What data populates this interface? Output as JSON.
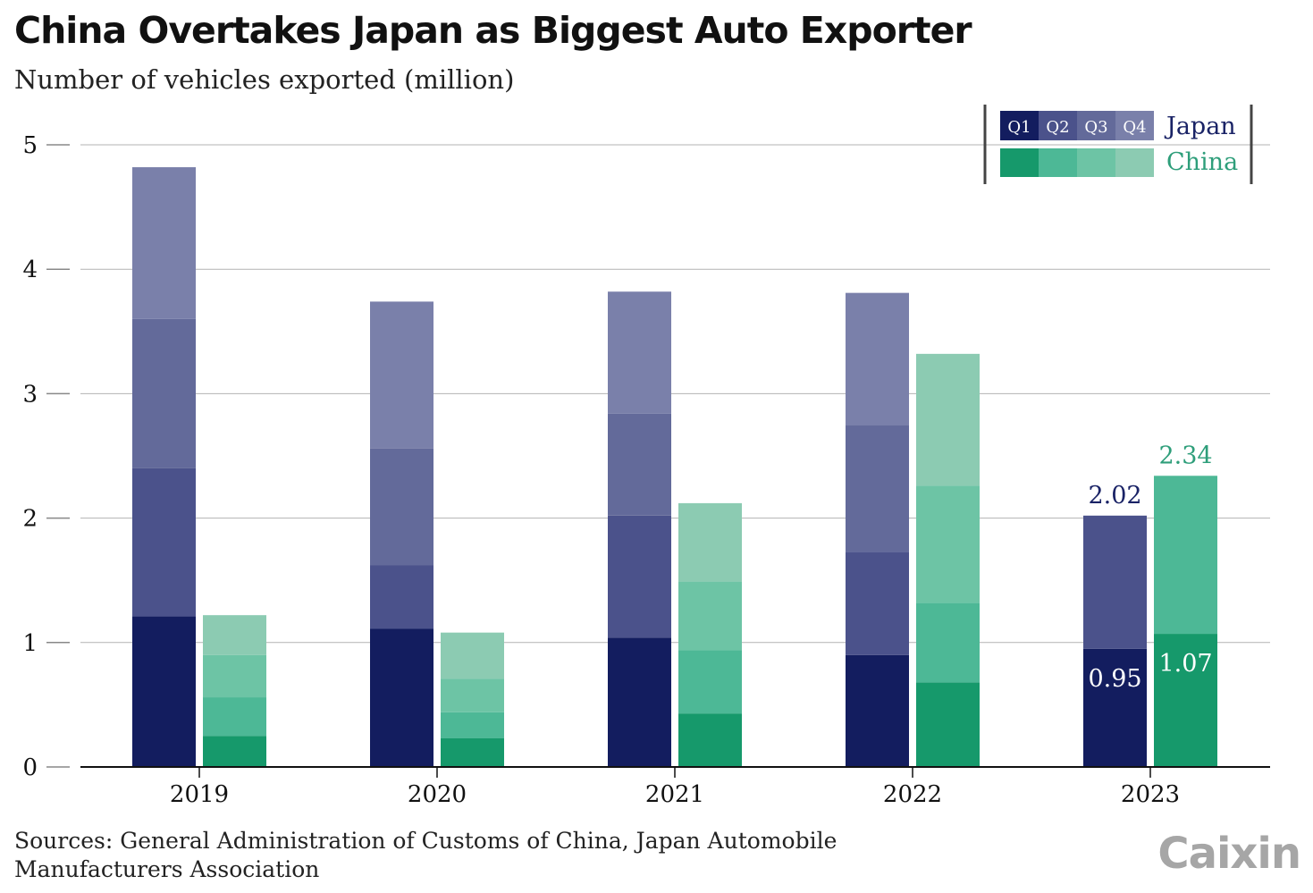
{
  "title": "China Overtakes Japan as Biggest Auto Exporter",
  "subtitle": "Number of vehicles exported (million)",
  "sources": "Sources: General Administration of Customs of China, Japan Automobile Manufacturers Association",
  "brand": "Caixin",
  "legend": {
    "quarters": [
      "Q1",
      "Q2",
      "Q3",
      "Q4"
    ],
    "japan_label": "Japan",
    "china_label": "China"
  },
  "colors": {
    "japan": [
      "#131d5f",
      "#4b528b",
      "#636a9a",
      "#7a80aa"
    ],
    "china": [
      "#16996b",
      "#4db896",
      "#6dc4a5",
      "#8ccbb2"
    ],
    "japan_text": "#1a2366",
    "china_text": "#2e9e7a",
    "grid": "#b3b3b3",
    "axis": "#111111"
  },
  "chart_data": {
    "type": "bar",
    "stacked": true,
    "categories": [
      "2019",
      "2020",
      "2021",
      "2022",
      "2023"
    ],
    "ylim": [
      0,
      5
    ],
    "yticks": [
      "0",
      "1",
      "2",
      "3",
      "4",
      "5"
    ],
    "grid": true,
    "legend_position": "top-right",
    "series": [
      {
        "name": "Japan",
        "quarterly_cumulative": [
          [
            1.21,
            2.4,
            3.6,
            4.82
          ],
          [
            1.11,
            1.62,
            2.56,
            3.74
          ],
          [
            1.04,
            2.02,
            2.84,
            3.82
          ],
          [
            0.9,
            1.73,
            2.75,
            3.81
          ],
          [
            0.95,
            2.02
          ]
        ]
      },
      {
        "name": "China",
        "quarterly_cumulative": [
          [
            0.25,
            0.56,
            0.9,
            1.22
          ],
          [
            0.23,
            0.44,
            0.71,
            1.08
          ],
          [
            0.43,
            0.94,
            1.49,
            2.12
          ],
          [
            0.68,
            1.32,
            2.26,
            3.32
          ],
          [
            1.07,
            2.34
          ]
        ]
      }
    ],
    "annotations": [
      {
        "category": "2023",
        "series": "Japan",
        "quarter": "Q1",
        "label": "0.95",
        "value": 0.95
      },
      {
        "category": "2023",
        "series": "Japan",
        "quarter": "Q2",
        "label": "2.02",
        "value": 2.02
      },
      {
        "category": "2023",
        "series": "China",
        "quarter": "Q1",
        "label": "1.07",
        "value": 1.07
      },
      {
        "category": "2023",
        "series": "China",
        "quarter": "Q2",
        "label": "2.34",
        "value": 2.34
      }
    ]
  }
}
